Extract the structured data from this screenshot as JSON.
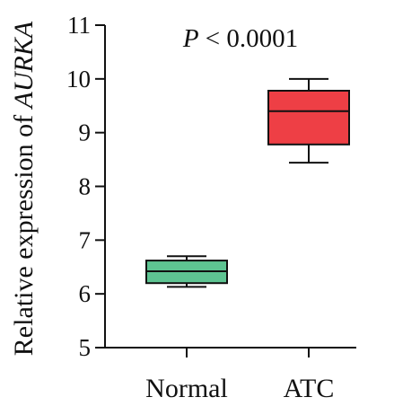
{
  "chart_data": {
    "type": "box",
    "ylabel": {
      "prefix": "Relative expression of ",
      "gene": "AURKA"
    },
    "annotation": {
      "p_symbol": "P",
      "p_rest": " < 0.0001"
    },
    "ylim": [
      5,
      11
    ],
    "yticks": [
      "5",
      "6",
      "7",
      "8",
      "9",
      "10",
      "11"
    ],
    "categories": [
      "Normal",
      "ATC"
    ],
    "boxes": [
      {
        "name": "Normal",
        "min": 6.13,
        "q1": 6.2,
        "median": 6.42,
        "q3": 6.62,
        "max": 6.7,
        "color": "#5ec492"
      },
      {
        "name": "ATC",
        "min": 8.44,
        "q1": 8.78,
        "median": 9.4,
        "q3": 9.78,
        "max": 10.0,
        "color": "#ee3f45"
      }
    ],
    "grid": false,
    "legend": false
  }
}
